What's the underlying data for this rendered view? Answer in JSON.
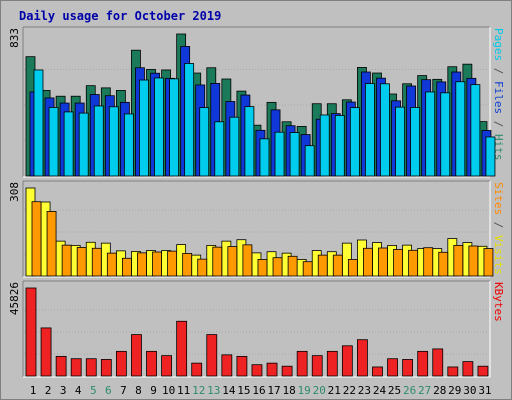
{
  "chart_data": {
    "type": "bar",
    "title": "Daily usage for October 2019",
    "categories": [
      "1",
      "2",
      "3",
      "4",
      "5",
      "6",
      "7",
      "8",
      "9",
      "10",
      "11",
      "12",
      "13",
      "14",
      "15",
      "16",
      "17",
      "18",
      "19",
      "20",
      "21",
      "22",
      "23",
      "24",
      "25",
      "26",
      "27",
      "28",
      "29",
      "30",
      "31"
    ],
    "weekend_days": [
      "5",
      "6",
      "12",
      "13",
      "19",
      "20",
      "26",
      "27"
    ],
    "panels": [
      {
        "id": "hits-panel",
        "ymax_label": "833",
        "ymax": 833,
        "right_label": [
          {
            "text": "Pages",
            "color": "#00c8e8"
          },
          {
            "text": " / ",
            "color": "#555555"
          },
          {
            "text": "Files",
            "color": "#1040d0"
          },
          {
            "text": " / ",
            "color": "#555555"
          },
          {
            "text": "Hits",
            "color": "#2e8b6a"
          }
        ],
        "series": [
          {
            "name": "Hits",
            "color": "#1a7a5a",
            "values": [
              700,
              502,
              468,
              468,
              530,
              517,
              502,
              738,
              625,
              622,
              833,
              604,
              635,
              569,
              498,
              298,
              432,
              318,
              291,
              424,
              424,
              447,
              637,
              604,
              481,
              541,
              589,
              567,
              641,
              656,
              319
            ]
          },
          {
            "name": "Files",
            "color": "#1038d8",
            "values": [
              493,
              458,
              428,
              428,
              478,
              471,
              432,
              635,
              603,
              573,
              760,
              534,
              543,
              437,
              475,
              268,
              388,
              295,
              243,
              333,
              366,
              434,
              610,
              574,
              441,
              528,
              565,
              552,
              610,
              573,
              267
            ]
          },
          {
            "name": "Pages",
            "color": "#00ccee",
            "values": [
              622,
              402,
              376,
              369,
              411,
              406,
              364,
              563,
              575,
              570,
              660,
              401,
              318,
              345,
              407,
              218,
              257,
              255,
              178,
              358,
              355,
              401,
              542,
              541,
              404,
              402,
              493,
              488,
              553,
              536,
              229
            ]
          }
        ]
      },
      {
        "id": "visits-panel",
        "ymax_label": "308",
        "ymax": 308,
        "right_label": [
          {
            "text": "Sites",
            "color": "#ff8800"
          },
          {
            "text": " / ",
            "color": "#555555"
          },
          {
            "text": "Visits",
            "color": "#e8e000"
          }
        ],
        "series": [
          {
            "name": "Visits",
            "color": "#ffff33",
            "values": [
              308,
              259,
              122,
              107,
              118,
              115,
              88,
              86,
              89,
              89,
              110,
              73,
              107,
              122,
              127,
              81,
              85,
              80,
              58,
              89,
              85,
              115,
              126,
              117,
              107,
              108,
              96,
              96,
              131,
              117,
              104
            ]
          },
          {
            "name": "Sites",
            "color": "#ff9900",
            "values": [
              260,
              226,
              108,
              100,
              97,
              80,
              62,
              81,
              84,
              87,
              79,
              59,
              101,
              103,
              109,
              58,
              64,
              69,
              50,
              73,
              73,
              58,
              97,
              98,
              93,
              90,
              99,
              83,
              107,
              105,
              96
            ]
          }
        ]
      },
      {
        "id": "kbytes-panel",
        "ymax_label": "45826",
        "ymax": 45826,
        "right_label": [
          {
            "text": "KBytes",
            "color": "#ee0000"
          }
        ],
        "series": [
          {
            "name": "KBytes",
            "color": "#ee2222",
            "values": [
              45826,
              25039,
              10219,
              9006,
              9006,
              8620,
              12834,
              21557,
              12834,
              10600,
              28503,
              6696,
              21557,
              11020,
              10219,
              5890,
              6696,
              5099,
              12834,
              10600,
              12834,
              15734,
              18909,
              4701,
              9006,
              8620,
              12834,
              14105,
              4701,
              7502,
              5099
            ]
          }
        ]
      }
    ]
  }
}
